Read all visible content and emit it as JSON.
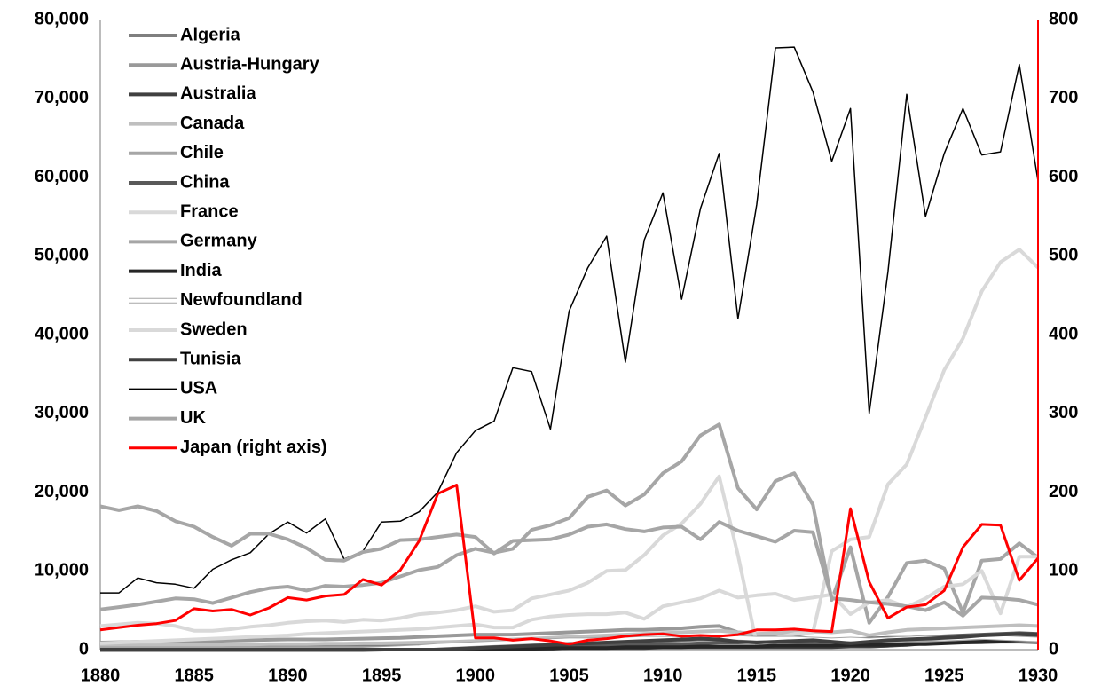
{
  "chart_data": {
    "type": "line",
    "x": [
      1880,
      1881,
      1882,
      1883,
      1884,
      1885,
      1886,
      1887,
      1888,
      1889,
      1890,
      1891,
      1892,
      1893,
      1894,
      1895,
      1896,
      1897,
      1898,
      1899,
      1900,
      1901,
      1902,
      1903,
      1904,
      1905,
      1906,
      1907,
      1908,
      1909,
      1910,
      1911,
      1912,
      1913,
      1914,
      1915,
      1916,
      1917,
      1918,
      1919,
      1920,
      1921,
      1922,
      1923,
      1924,
      1925,
      1926,
      1927,
      1928,
      1929,
      1930
    ],
    "xlim": [
      1880,
      1930
    ],
    "xticks": [
      1880,
      1885,
      1890,
      1895,
      1900,
      1905,
      1910,
      1915,
      1920,
      1925,
      1930
    ],
    "ylim": [
      0,
      80000
    ],
    "yticks": [
      0,
      {
        "value": 10000,
        "label": "10,000"
      },
      {
        "value": 20000,
        "label": "20,000"
      },
      {
        "value": 30000,
        "label": "30,000"
      },
      {
        "value": 40000,
        "label": "40,000"
      },
      {
        "value": 50000,
        "label": "50,000"
      },
      {
        "value": 60000,
        "label": "60,000"
      },
      {
        "value": 70000,
        "label": "70,000"
      },
      {
        "value": 80000,
        "label": "80,000"
      }
    ],
    "y2lim": [
      0,
      800
    ],
    "y2ticks": [
      0,
      100,
      200,
      300,
      400,
      500,
      600,
      700,
      800
    ],
    "y2_color": "#ff0000",
    "legend": "upper left",
    "series": [
      {
        "name": "Algeria",
        "color": "#7f7f7f",
        "line_width": 4,
        "values": [
          300,
          300,
          350,
          350,
          400,
          400,
          400,
          450,
          450,
          500,
          500,
          500,
          550,
          600,
          600,
          600,
          650,
          700,
          700,
          750,
          800,
          800,
          800,
          850,
          900,
          900,
          950,
          1000,
          1000,
          1050,
          1100,
          1200,
          1300,
          1400,
          1200,
          1000,
          900,
          800,
          700,
          600,
          600,
          400,
          500,
          700,
          800,
          900,
          900,
          900,
          1000,
          1000,
          900
        ]
      },
      {
        "name": "Austria-Hungary",
        "color": "#999999",
        "line_width": 4,
        "values": [
          900,
          950,
          1000,
          1000,
          1050,
          1100,
          1100,
          1150,
          1200,
          1250,
          1300,
          1300,
          1300,
          1350,
          1400,
          1450,
          1500,
          1600,
          1700,
          1800,
          1900,
          1900,
          1900,
          2000,
          2100,
          2200,
          2300,
          2400,
          2500,
          2500,
          2600,
          2700,
          2900,
          3000,
          2200,
          1900,
          1800,
          1700,
          1300,
          null,
          null,
          null,
          null,
          null,
          null,
          null,
          null,
          null,
          null,
          null,
          null
        ]
      },
      {
        "name": "Australia",
        "color": "#404040",
        "line_width": 4,
        "values": [
          0,
          0,
          0,
          0,
          0,
          0,
          0,
          0,
          0,
          0,
          0,
          0,
          100,
          100,
          100,
          100,
          100,
          100,
          100,
          100,
          100,
          100,
          100,
          100,
          100,
          200,
          200,
          200,
          200,
          200,
          300,
          300,
          300,
          300,
          300,
          300,
          300,
          300,
          300,
          300,
          400,
          400,
          500,
          600,
          800,
          900,
          1000,
          1200,
          1500,
          1600,
          1500
        ]
      },
      {
        "name": "Canada",
        "color": "#bfbfbf",
        "line_width": 4,
        "values": [
          500,
          500,
          550,
          550,
          600,
          600,
          600,
          650,
          650,
          700,
          700,
          700,
          750,
          750,
          800,
          800,
          850,
          900,
          950,
          1000,
          1100,
          1200,
          1300,
          1400,
          1500,
          1600,
          1700,
          1800,
          1900,
          2000,
          2100,
          2200,
          2300,
          2400,
          2200,
          2000,
          2100,
          2200,
          2300,
          2200,
          2400,
          1800,
          2200,
          2500,
          2600,
          2700,
          2800,
          2900,
          3000,
          3100,
          3000
        ]
      },
      {
        "name": "Chile",
        "color": "#a6a6a6",
        "line_width": 4,
        "values": [
          200,
          200,
          200,
          200,
          200,
          200,
          200,
          200,
          200,
          200,
          200,
          200,
          200,
          200,
          200,
          200,
          200,
          200,
          200,
          200,
          200,
          300,
          400,
          500,
          600,
          700,
          800,
          900,
          1000,
          1100,
          1200,
          1300,
          1400,
          1500,
          1600,
          1200,
          900,
          1000,
          1100,
          1200,
          1000,
          1100,
          800,
          900,
          1000,
          1100,
          1200,
          1300,
          1400,
          1500,
          1300
        ]
      },
      {
        "name": "China",
        "color": "#595959",
        "line_width": 4,
        "values": [
          0,
          0,
          0,
          0,
          0,
          0,
          0,
          0,
          0,
          0,
          0,
          0,
          0,
          0,
          0,
          100,
          100,
          100,
          200,
          200,
          200,
          300,
          300,
          300,
          400,
          400,
          500,
          500,
          600,
          600,
          700,
          700,
          800,
          900,
          900,
          1000,
          1000,
          1100,
          1100,
          1200,
          1300,
          1400,
          1500,
          1500,
          1600,
          1700,
          1800,
          1900,
          2000,
          2100,
          2000
        ]
      },
      {
        "name": "France",
        "color": "#d9d9d9",
        "line_width": 4,
        "values": [
          3000,
          3200,
          3400,
          3300,
          3000,
          2400,
          2400,
          2600,
          2900,
          3100,
          3400,
          3600,
          3700,
          3500,
          3800,
          3700,
          4000,
          4500,
          4700,
          5000,
          5500,
          4800,
          5000,
          6500,
          7000,
          7500,
          8500,
          10000,
          10100,
          12000,
          14500,
          16000,
          18500,
          22000,
          12000,
          700,
          1500,
          2000,
          2200,
          12500,
          14000,
          14300,
          21000,
          23500,
          29500,
          35500,
          39500,
          45500,
          49200,
          50800,
          48500
        ]
      },
      {
        "name": "Germany",
        "color": "#a6a6a6",
        "line_width": 4,
        "values": [
          5100,
          5400,
          5700,
          6100,
          6500,
          6400,
          5900,
          6600,
          7300,
          7800,
          8000,
          7500,
          8100,
          8000,
          8200,
          8500,
          9300,
          10100,
          10500,
          12000,
          12800,
          12300,
          12800,
          15200,
          15800,
          16700,
          19400,
          20200,
          18300,
          19700,
          22400,
          23900,
          27200,
          28600,
          20500,
          17800,
          21400,
          22400,
          18400,
          6300,
          13000,
          3400,
          6700,
          11000,
          11300,
          10300,
          4700,
          11300,
          11500,
          13500,
          11700
        ]
      },
      {
        "name": "India",
        "color": "#262626",
        "line_width": 4,
        "values": [
          0,
          0,
          0,
          0,
          0,
          0,
          0,
          0,
          0,
          0,
          0,
          0,
          0,
          0,
          0,
          0,
          0,
          0,
          0,
          0,
          100,
          100,
          100,
          100,
          200,
          200,
          200,
          200,
          300,
          300,
          300,
          300,
          400,
          400,
          400,
          400,
          500,
          500,
          500,
          500,
          600,
          600,
          600,
          700,
          700,
          800,
          900,
          1000,
          1100,
          1200,
          1300
        ]
      },
      {
        "name": "Newfoundland",
        "color": "#ffffff",
        "outline": "#a6a6a6",
        "line_width": 4,
        "values": [
          0,
          0,
          0,
          0,
          0,
          0,
          0,
          0,
          0,
          0,
          0,
          0,
          0,
          0,
          0,
          100,
          200,
          300,
          500,
          600,
          700,
          800,
          900,
          1000,
          1100,
          1200,
          1200,
          1300,
          1300,
          1400,
          1400,
          1400,
          1500,
          1500,
          1500,
          1400,
          1400,
          1400,
          1300,
          1200,
          1300,
          1200,
          1300,
          1400,
          1500,
          1400,
          1500,
          1600,
          1500,
          1400,
          1300
        ]
      },
      {
        "name": "Sweden",
        "color": "#d9d9d9",
        "line_width": 4,
        "values": [
          800,
          900,
          1000,
          1100,
          1200,
          1300,
          1400,
          1500,
          1600,
          1700,
          1800,
          2000,
          2100,
          2200,
          2300,
          2400,
          2500,
          2600,
          2800,
          3000,
          3200,
          2800,
          2800,
          3800,
          4200,
          4400,
          4500,
          4500,
          4700,
          3900,
          5500,
          6000,
          6500,
          7500,
          6600,
          6900,
          7100,
          6300,
          6600,
          7000,
          4500,
          6000,
          6300,
          5400,
          6500,
          8000,
          8300,
          10000,
          4600,
          11800,
          11800
        ]
      },
      {
        "name": "Tunisia",
        "color": "#404040",
        "line_width": 4,
        "values": [
          0,
          0,
          0,
          0,
          0,
          0,
          0,
          0,
          0,
          0,
          0,
          0,
          0,
          0,
          0,
          0,
          0,
          0,
          0,
          100,
          200,
          300,
          400,
          500,
          600,
          700,
          800,
          900,
          1000,
          1100,
          1200,
          1300,
          1400,
          1300,
          1000,
          900,
          1000,
          1100,
          1200,
          1000,
          800,
          1000,
          1200,
          1300,
          1400,
          1500,
          1600,
          1800,
          1900,
          2000,
          1900
        ]
      },
      {
        "name": "USA",
        "color": "#000000",
        "line_width": 1.5,
        "values": [
          7200,
          7200,
          9100,
          8500,
          8300,
          7800,
          10200,
          11400,
          12300,
          14700,
          16200,
          14800,
          16600,
          11500,
          12500,
          16200,
          16300,
          17500,
          20000,
          25000,
          27800,
          29000,
          35800,
          35300,
          28000,
          43000,
          48500,
          52500,
          36500,
          52000,
          58000,
          44500,
          56000,
          63000,
          42000,
          56500,
          76400,
          76500,
          70800,
          62000,
          68700,
          30000,
          48000,
          70500,
          55000,
          63000,
          68700,
          62800,
          63200,
          74300,
          59500
        ]
      },
      {
        "name": "UK",
        "color": "#a6a6a6",
        "line_width": 4,
        "values": [
          18200,
          17700,
          18200,
          17600,
          16300,
          15600,
          14300,
          13200,
          14700,
          14700,
          14000,
          12900,
          11400,
          11300,
          12400,
          12800,
          13900,
          14000,
          14300,
          14600,
          14300,
          12200,
          13800,
          13900,
          14000,
          14600,
          15600,
          15900,
          15300,
          15000,
          15500,
          15600,
          14000,
          16200,
          15100,
          14400,
          13700,
          15100,
          14900,
          6500,
          6300,
          6000,
          5800,
          5500,
          5000,
          6000,
          4300,
          6600,
          6500,
          6300,
          5700
        ]
      },
      {
        "name": "Japan (right axis)",
        "color": "#ff0000",
        "line_width": 3,
        "axis": "y2",
        "values": [
          25,
          28,
          31,
          33,
          37,
          52,
          49,
          51,
          44,
          53,
          66,
          63,
          68,
          70,
          89,
          82,
          101,
          138,
          198,
          209,
          15,
          15,
          12,
          14,
          11,
          7,
          12,
          14,
          17,
          19,
          20,
          17,
          18,
          17,
          19,
          25,
          25,
          26,
          24,
          23,
          179,
          86,
          40,
          54,
          57,
          75,
          130,
          159,
          158,
          88,
          116
        ]
      }
    ]
  }
}
